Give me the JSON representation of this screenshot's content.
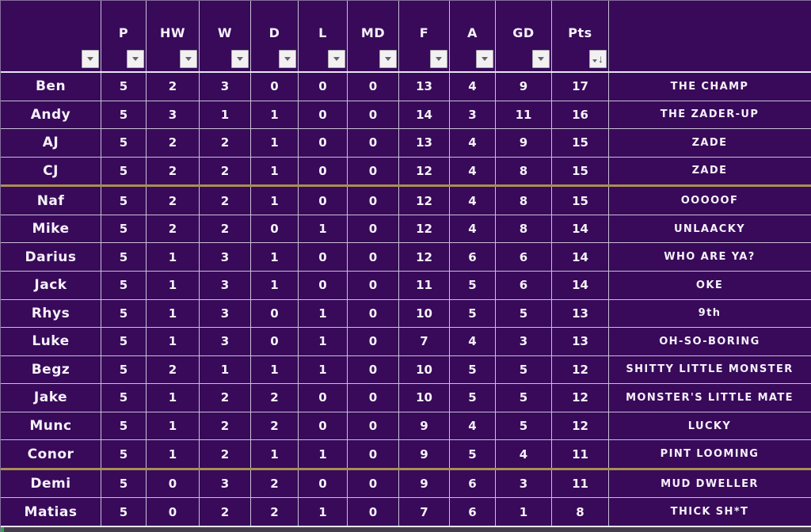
{
  "colors": {
    "background": "#380a59",
    "gridline": "#c9c0d8",
    "text": "#f6f1fb",
    "gold_separator": "#a98f52",
    "filter_button_bg": "#f2f0f1",
    "filter_glyph": "#62626c",
    "corner_mark_green": "#2ea44f"
  },
  "header": {
    "sort_desc_icon": "↓",
    "columns": [
      {
        "key": "name",
        "label": "",
        "filter": "plain"
      },
      {
        "key": "p",
        "label": "P",
        "filter": "plain"
      },
      {
        "key": "hw",
        "label": "HW",
        "filter": "plain"
      },
      {
        "key": "w",
        "label": "W",
        "filter": "plain"
      },
      {
        "key": "d",
        "label": "D",
        "filter": "plain"
      },
      {
        "key": "l",
        "label": "L",
        "filter": "plain"
      },
      {
        "key": "md",
        "label": "MD",
        "filter": "plain"
      },
      {
        "key": "f",
        "label": "F",
        "filter": "plain"
      },
      {
        "key": "a",
        "label": "A",
        "filter": "plain"
      },
      {
        "key": "gd",
        "label": "GD",
        "filter": "plain"
      },
      {
        "key": "pts",
        "label": "Pts",
        "filter": "sort-desc"
      },
      {
        "key": "nickname",
        "label": "",
        "filter": "none"
      }
    ]
  },
  "rows": [
    {
      "name": "Ben",
      "p": 5,
      "hw": 2,
      "w": 3,
      "d": 0,
      "l": 0,
      "md": 0,
      "f": 13,
      "a": 4,
      "gd": 9,
      "pts": 17,
      "nickname": "THE CHAMP",
      "separator_below": false
    },
    {
      "name": "Andy",
      "p": 5,
      "hw": 3,
      "w": 1,
      "d": 1,
      "l": 0,
      "md": 0,
      "f": 14,
      "a": 3,
      "gd": 11,
      "pts": 16,
      "nickname": "THE ZADER-UP",
      "separator_below": false
    },
    {
      "name": "AJ",
      "p": 5,
      "hw": 2,
      "w": 2,
      "d": 1,
      "l": 0,
      "md": 0,
      "f": 13,
      "a": 4,
      "gd": 9,
      "pts": 15,
      "nickname": "ZADE",
      "separator_below": false
    },
    {
      "name": "CJ",
      "p": 5,
      "hw": 2,
      "w": 2,
      "d": 1,
      "l": 0,
      "md": 0,
      "f": 12,
      "a": 4,
      "gd": 8,
      "pts": 15,
      "nickname": "ZADE",
      "separator_below": true
    },
    {
      "name": "Naf",
      "p": 5,
      "hw": 2,
      "w": 2,
      "d": 1,
      "l": 0,
      "md": 0,
      "f": 12,
      "a": 4,
      "gd": 8,
      "pts": 15,
      "nickname": "OOOOOF",
      "separator_below": false
    },
    {
      "name": "Mike",
      "p": 5,
      "hw": 2,
      "w": 2,
      "d": 0,
      "l": 1,
      "md": 0,
      "f": 12,
      "a": 4,
      "gd": 8,
      "pts": 14,
      "nickname": "UNLAACKY",
      "separator_below": false
    },
    {
      "name": "Darius",
      "p": 5,
      "hw": 1,
      "w": 3,
      "d": 1,
      "l": 0,
      "md": 0,
      "f": 12,
      "a": 6,
      "gd": 6,
      "pts": 14,
      "nickname": "WHO ARE YA?",
      "separator_below": false
    },
    {
      "name": "Jack",
      "p": 5,
      "hw": 1,
      "w": 3,
      "d": 1,
      "l": 0,
      "md": 0,
      "f": 11,
      "a": 5,
      "gd": 6,
      "pts": 14,
      "nickname": "OKE",
      "separator_below": false
    },
    {
      "name": "Rhys",
      "p": 5,
      "hw": 1,
      "w": 3,
      "d": 0,
      "l": 1,
      "md": 0,
      "f": 10,
      "a": 5,
      "gd": 5,
      "pts": 13,
      "nickname": "9th",
      "separator_below": false
    },
    {
      "name": "Luke",
      "p": 5,
      "hw": 1,
      "w": 3,
      "d": 0,
      "l": 1,
      "md": 0,
      "f": 7,
      "a": 4,
      "gd": 3,
      "pts": 13,
      "nickname": "OH-SO-BORING",
      "separator_below": false
    },
    {
      "name": "Begz",
      "p": 5,
      "hw": 2,
      "w": 1,
      "d": 1,
      "l": 1,
      "md": 0,
      "f": 10,
      "a": 5,
      "gd": 5,
      "pts": 12,
      "nickname": "SHITTY LITTLE MONSTER",
      "separator_below": false
    },
    {
      "name": "Jake",
      "p": 5,
      "hw": 1,
      "w": 2,
      "d": 2,
      "l": 0,
      "md": 0,
      "f": 10,
      "a": 5,
      "gd": 5,
      "pts": 12,
      "nickname": "MONSTER'S LITTLE MATE",
      "separator_below": false
    },
    {
      "name": "Munc",
      "p": 5,
      "hw": 1,
      "w": 2,
      "d": 2,
      "l": 0,
      "md": 0,
      "f": 9,
      "a": 4,
      "gd": 5,
      "pts": 12,
      "nickname": "LUCKY",
      "separator_below": false
    },
    {
      "name": "Conor",
      "p": 5,
      "hw": 1,
      "w": 2,
      "d": 1,
      "l": 1,
      "md": 0,
      "f": 9,
      "a": 5,
      "gd": 4,
      "pts": 11,
      "nickname": "PINT LOOMING",
      "separator_below": true
    },
    {
      "name": "Demi",
      "p": 5,
      "hw": 0,
      "w": 3,
      "d": 2,
      "l": 0,
      "md": 0,
      "f": 9,
      "a": 6,
      "gd": 3,
      "pts": 11,
      "nickname": "MUD DWELLER",
      "separator_below": false
    },
    {
      "name": "Matias",
      "p": 5,
      "hw": 0,
      "w": 2,
      "d": 2,
      "l": 1,
      "md": 0,
      "f": 7,
      "a": 6,
      "gd": 1,
      "pts": 8,
      "nickname": "THICK SH*T",
      "separator_below": false
    }
  ]
}
